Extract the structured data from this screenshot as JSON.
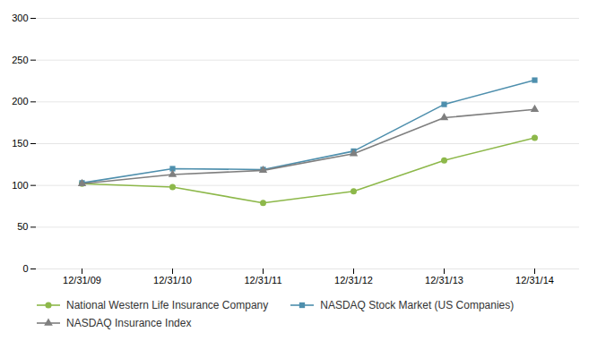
{
  "chart_data": {
    "type": "line",
    "categories": [
      "12/31/09",
      "12/31/10",
      "12/31/11",
      "12/31/12",
      "12/31/13",
      "12/31/14"
    ],
    "series": [
      {
        "name": "National Western Life Insurance Company",
        "color": "#8db84a",
        "marker": "circle",
        "values": [
          102,
          98,
          79,
          93,
          130,
          157
        ]
      },
      {
        "name": "NASDAQ Stock Market (US Companies)",
        "color": "#4e8fad",
        "marker": "square",
        "values": [
          103,
          120,
          119,
          141,
          197,
          226
        ]
      },
      {
        "name": "NASDAQ Insurance Index",
        "color": "#7f7f7f",
        "marker": "triangle",
        "values": [
          102,
          113,
          118,
          138,
          181,
          191
        ]
      }
    ],
    "ylim": [
      0,
      300
    ],
    "yticks": [
      0,
      50,
      100,
      150,
      200,
      250,
      300
    ],
    "grid": true,
    "legend": "bottom"
  }
}
